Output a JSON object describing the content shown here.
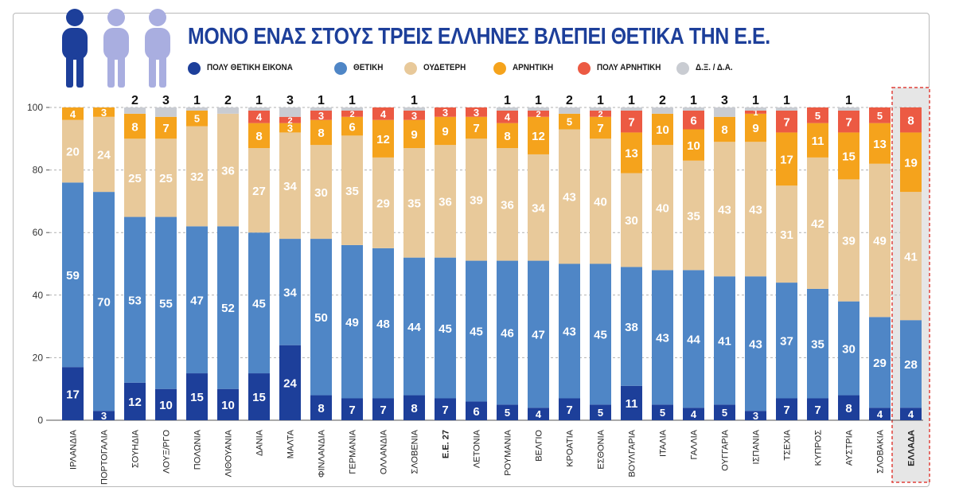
{
  "title": "ΜΟΝΟ ΕΝΑΣ ΣΤΟΥΣ ΤΡΕΙΣ ΕΛΛΗΝΕΣ ΒΛΕΠΕΙ ΘΕΤΙΚΑ ΤΗΝ Ε.Ε.",
  "colors": {
    "title": "#1d3f9a",
    "highlight_bg": "#e6e6e6",
    "highlight_border": "#e0413a",
    "figure_dark": "#1d3f9a",
    "figure_light": "#a9aee0"
  },
  "legend": [
    {
      "label": "ΠΟΛΥ ΘΕΤΙΚΗ ΕΙΚΟΝΑ",
      "color": "#1d3f9a"
    },
    {
      "label": "ΘΕΤΙΚΗ",
      "color": "#4f86c6"
    },
    {
      "label": "ΟΥΔΕΤΕΡΗ",
      "color": "#e8c99a"
    },
    {
      "label": "ΑΡΝΗΤΙΚΗ",
      "color": "#f5a31c"
    },
    {
      "label": "ΠΟΛΥ ΑΡΝΗΤΙΚΗ",
      "color": "#ec5a43"
    },
    {
      "label": "Δ.Ξ. / Δ.Α.",
      "color": "#c9ccd2"
    }
  ],
  "chart_data": {
    "type": "bar",
    "stacked": true,
    "title": "ΜΟΝΟ ΕΝΑΣ ΣΤΟΥΣ ΤΡΕΙΣ ΕΛΛΗΝΕΣ ΒΛΕΠΕΙ ΘΕΤΙΚΑ ΤΗΝ Ε.Ε.",
    "ylim": [
      0,
      100
    ],
    "yticks": [
      0,
      20,
      40,
      60,
      80,
      100
    ],
    "grid": true,
    "legend_position": "top",
    "highlight_category": "ΕΛΛΑΔΑ",
    "bold_categories": [
      "Ε.Ε. 27",
      "ΕΛΛΑΔΑ"
    ],
    "categories": [
      "ΙΡΛΑΝΔΙΑ",
      "ΠΟΡΤΟΓΑΛΙΑ",
      "ΣΟΥΗΔΙΑ",
      "ΛΟΥΞ/ΡΓΟ",
      "ΠΟΛΩΝΙΑ",
      "ΛΙΘΟΥΑΝΙΑ",
      "ΔΑΝΙΑ",
      "ΜΑΛΤΑ",
      "ΦΙΝΛΑΝΔΙΑ",
      "ΓΕΡΜΑΝΙΑ",
      "ΟΛΛΑΝΔΙΑ",
      "ΣΛΟΒΕΝΙΑ",
      "Ε.Ε. 27",
      "ΛΕΤΟΝΙΑ",
      "ΡΟΥΜΑΝΙΑ",
      "ΒΕΛΓΙΟ",
      "ΚΡΟΑΤΙΑ",
      "ΕΣΘΟΝΙΑ",
      "ΒΟΥΛΓΑΡΙΑ",
      "ΙΤΑΛΙΑ",
      "ΓΑΛΛΙΑ",
      "ΟΥΓΓΑΡΙΑ",
      "ΙΣΠΑΝΙΑ",
      "ΤΣΕΧΙΑ",
      "ΚΥΠΡΟΣ",
      "ΑΥΣΤΡΙΑ",
      "ΣΛΟΒΑΚΙΑ",
      "ΕΛΛΑΔΑ"
    ],
    "series": [
      {
        "name": "ΠΟΛΥ ΘΕΤΙΚΗ ΕΙΚΟΝΑ",
        "color": "#1d3f9a",
        "values": [
          17,
          3,
          12,
          10,
          15,
          10,
          15,
          24,
          8,
          7,
          7,
          8,
          7,
          6,
          5,
          4,
          7,
          5,
          11,
          5,
          4,
          5,
          3,
          7,
          7,
          8,
          4,
          4
        ]
      },
      {
        "name": "ΘΕΤΙΚΗ",
        "color": "#4f86c6",
        "values": [
          59,
          70,
          53,
          55,
          47,
          52,
          45,
          34,
          50,
          49,
          48,
          44,
          45,
          45,
          46,
          47,
          43,
          45,
          38,
          43,
          44,
          41,
          43,
          37,
          35,
          30,
          29,
          28
        ]
      },
      {
        "name": "ΟΥΔΕΤΕΡΗ",
        "color": "#e8c99a",
        "values": [
          20,
          24,
          25,
          25,
          32,
          36,
          27,
          34,
          30,
          35,
          29,
          35,
          36,
          39,
          36,
          34,
          43,
          40,
          30,
          40,
          35,
          43,
          43,
          31,
          42,
          39,
          49,
          41
        ]
      },
      {
        "name": "ΑΡΝΗΤΙΚΗ",
        "color": "#f5a31c",
        "values": [
          4,
          3,
          8,
          7,
          5,
          0,
          8,
          3,
          8,
          6,
          12,
          9,
          9,
          7,
          8,
          12,
          5,
          7,
          13,
          10,
          10,
          8,
          9,
          17,
          11,
          15,
          13,
          19
        ]
      },
      {
        "name": "ΠΟΛΥ ΑΡΝΗΤΙΚΗ",
        "color": "#ec5a43",
        "values": [
          0,
          0,
          0,
          0,
          0,
          0,
          4,
          2,
          3,
          2,
          4,
          3,
          3,
          3,
          4,
          2,
          0,
          2,
          7,
          0,
          6,
          0,
          1,
          7,
          5,
          7,
          5,
          8
        ]
      },
      {
        "name": "Δ.Ξ. / Δ.Α.",
        "color": "#c9ccd2",
        "values": [
          0,
          0,
          2,
          3,
          1,
          2,
          1,
          3,
          1,
          1,
          0,
          1,
          0,
          0,
          1,
          1,
          2,
          1,
          1,
          2,
          1,
          3,
          1,
          1,
          0,
          1,
          0,
          0
        ]
      }
    ]
  }
}
